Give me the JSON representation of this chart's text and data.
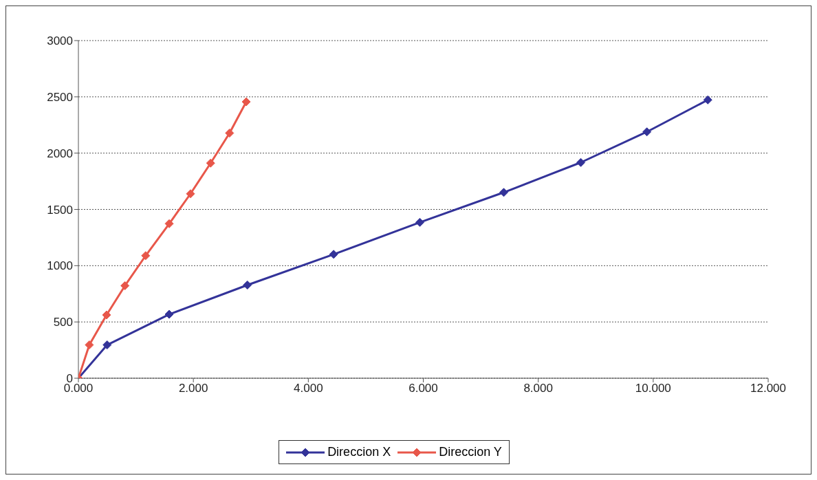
{
  "chart_data": {
    "type": "line",
    "series": [
      {
        "name": "Direccion X",
        "color": "#333399",
        "x": [
          0,
          0.5,
          1.58,
          2.94,
          4.44,
          5.94,
          7.4,
          8.74,
          9.89,
          10.95
        ],
        "values": [
          0,
          296,
          568,
          828,
          1101,
          1385,
          1651,
          1917,
          2189,
          2473
        ]
      },
      {
        "name": "Direccion Y",
        "color": "#e8574a",
        "x": [
          0,
          0.19,
          0.49,
          0.81,
          1.17,
          1.58,
          1.95,
          2.3,
          2.63,
          2.92
        ],
        "values": [
          0,
          296,
          562,
          822,
          1089,
          1373,
          1639,
          1911,
          2178,
          2456
        ]
      }
    ],
    "xlim": [
      0,
      12
    ],
    "xticks": [
      {
        "value": 0,
        "label": "0.000"
      },
      {
        "value": 2,
        "label": "2.000"
      },
      {
        "value": 4,
        "label": "4.000"
      },
      {
        "value": 6,
        "label": "6.000"
      },
      {
        "value": 8,
        "label": "8.000"
      },
      {
        "value": 10,
        "label": "10.000"
      },
      {
        "value": 12,
        "label": "12.000"
      }
    ],
    "ylim": [
      0,
      3000
    ],
    "yticks": [
      0,
      500,
      1000,
      1500,
      2000,
      2500,
      3000
    ],
    "grid": "y",
    "legend": "bottom",
    "marker": "diamond",
    "line_style": "solid"
  }
}
